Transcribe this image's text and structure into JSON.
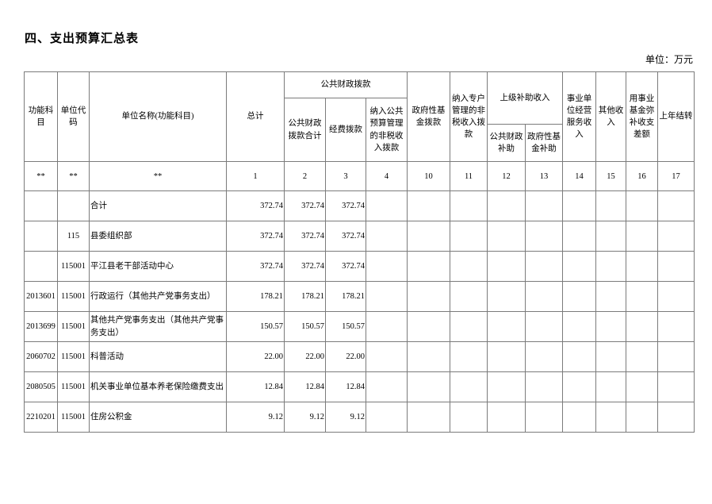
{
  "page": {
    "title": "四、支出预算汇总表",
    "unit_note": "单位：万元"
  },
  "table": {
    "header": {
      "functional_subject": "功能科目",
      "unit_code": "单位代码",
      "unit_name": "单位名称(功能科目)",
      "total": "总计",
      "public_finance_group": "公共财政拨款",
      "public_finance_total": "公共财政拨款合计",
      "expense_appropriation": "经费拨款",
      "nontax_public_budget": "纳入公共预算管理的非税收入拨款",
      "gov_fund_appropriation": "政府性基金拨款",
      "nontax_special_account": "纳入专户管理的非税收入拨款",
      "superior_subsidy_group": "上级补助收入",
      "public_finance_subsidy": "公共财政补助",
      "gov_fund_subsidy": "政府性基金补助",
      "business_service_income": "事业单位经营服务收入",
      "other_income": "其他收入",
      "fund_cover_balance": "用事业基金弥补收支差额",
      "prev_year_carryover": "上年结转"
    },
    "index_row": [
      "**",
      "**",
      "**",
      "1",
      "2",
      "3",
      "4",
      "10",
      "11",
      "12",
      "13",
      "14",
      "15",
      "16",
      "17"
    ],
    "rows": [
      [
        "",
        "",
        "合计",
        "372.74",
        "372.74",
        "372.74",
        "",
        "",
        "",
        "",
        "",
        "",
        "",
        "",
        ""
      ],
      [
        "",
        "115",
        "县委组织部",
        "372.74",
        "372.74",
        "372.74",
        "",
        "",
        "",
        "",
        "",
        "",
        "",
        "",
        ""
      ],
      [
        "",
        "115001",
        "平江县老干部活动中心",
        "372.74",
        "372.74",
        "372.74",
        "",
        "",
        "",
        "",
        "",
        "",
        "",
        "",
        ""
      ],
      [
        "2013601",
        "115001",
        "行政运行（其他共产党事务支出）",
        "178.21",
        "178.21",
        "178.21",
        "",
        "",
        "",
        "",
        "",
        "",
        "",
        "",
        ""
      ],
      [
        "2013699",
        "115001",
        "其他共产党事务支出（其他共产党事务支出）",
        "150.57",
        "150.57",
        "150.57",
        "",
        "",
        "",
        "",
        "",
        "",
        "",
        "",
        ""
      ],
      [
        "2060702",
        "115001",
        "科普活动",
        "22.00",
        "22.00",
        "22.00",
        "",
        "",
        "",
        "",
        "",
        "",
        "",
        "",
        ""
      ],
      [
        "2080505",
        "115001",
        "机关事业单位基本养老保险缴费支出",
        "12.84",
        "12.84",
        "12.84",
        "",
        "",
        "",
        "",
        "",
        "",
        "",
        "",
        ""
      ],
      [
        "2210201",
        "115001",
        "住房公积金",
        "9.12",
        "9.12",
        "9.12",
        "",
        "",
        "",
        "",
        "",
        "",
        "",
        "",
        ""
      ]
    ]
  }
}
